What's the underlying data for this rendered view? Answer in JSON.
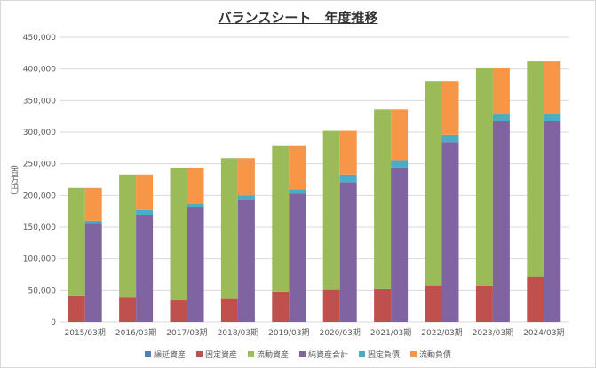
{
  "chart_data": {
    "type": "bar",
    "stacked": true,
    "title": "バランスシート　年度推移",
    "ylabel": "(百万円)",
    "ylim": [
      0,
      450000
    ],
    "yticks": [
      "0",
      "50,000",
      "100,000",
      "150,000",
      "200,000",
      "250,000",
      "300,000",
      "350,000",
      "400,000",
      "450,000"
    ],
    "categories": [
      "2015/03期",
      "2016/03期",
      "2017/03期",
      "2018/03期",
      "2019/03期",
      "2020/03期",
      "2021/03期",
      "2022/03期",
      "2023/03期",
      "2024/03期"
    ],
    "legend_position": "bottom",
    "grid": true,
    "series": [
      {
        "name": "繰延資産",
        "stack": "assets",
        "color": "#4f81bd",
        "values": [
          0,
          0,
          0,
          0,
          0,
          0,
          0,
          0,
          0,
          0
        ]
      },
      {
        "name": "固定資産",
        "stack": "assets",
        "color": "#c0504d",
        "values": [
          41000,
          39000,
          35000,
          37000,
          48000,
          51000,
          52000,
          58000,
          57000,
          72000
        ]
      },
      {
        "name": "流動資産",
        "stack": "assets",
        "color": "#9bbb59",
        "values": [
          171000,
          194000,
          209000,
          222000,
          230000,
          251000,
          284000,
          323000,
          344000,
          340000
        ]
      },
      {
        "name": "純資産合計",
        "stack": "liab",
        "color": "#8064a2",
        "values": [
          155000,
          169000,
          182000,
          194000,
          203000,
          221000,
          244000,
          284000,
          318000,
          317000
        ]
      },
      {
        "name": "固定負債",
        "stack": "liab",
        "color": "#4bacc6",
        "values": [
          5000,
          8000,
          5000,
          6000,
          7000,
          12000,
          12000,
          12000,
          10000,
          12000
        ]
      },
      {
        "name": "流動負債",
        "stack": "liab",
        "color": "#f79646",
        "values": [
          52000,
          56000,
          57000,
          59000,
          68000,
          69000,
          80000,
          85000,
          73000,
          83000
        ]
      }
    ]
  }
}
